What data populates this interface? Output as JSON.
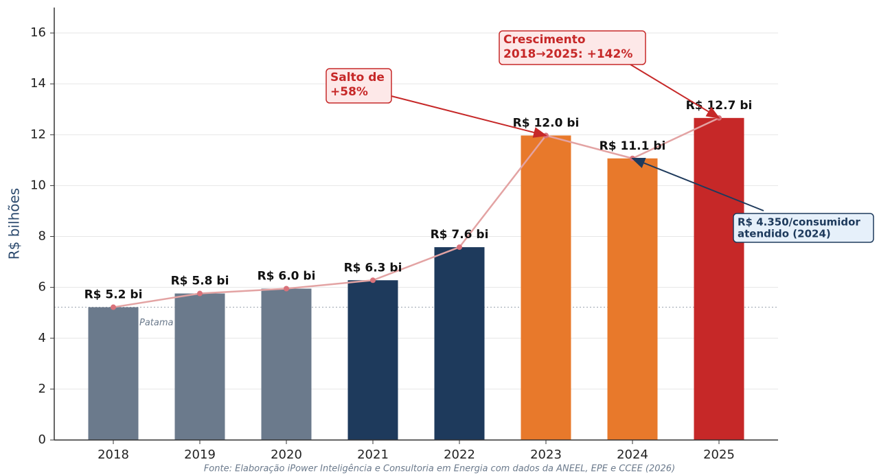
{
  "chart_data": {
    "type": "bar",
    "y_label": "R$ bilhões",
    "footer": "Fonte: Elaboração iPower Inteligência e Consultoria em Energia com dados da ANEEL, EPE e CCEE (2026)",
    "categories": [
      "2018",
      "2019",
      "2020",
      "2021",
      "2022",
      "2023",
      "2024",
      "2025"
    ],
    "values": [
      5.22,
      5.76,
      5.95,
      6.28,
      7.58,
      11.97,
      11.07,
      12.66
    ],
    "value_labels": [
      "R$ 5.2 bi",
      "R$ 5.8 bi",
      "R$ 6.0 bi",
      "R$ 6.3 bi",
      "R$ 7.6 bi",
      "R$ 12.0 bi",
      "R$ 11.1 bi",
      "R$ 12.7 bi"
    ],
    "colors": [
      "#6b7a8c",
      "#6b7a8c",
      "#6b7a8c",
      "#1e3a5c",
      "#1e3a5c",
      "#e8792b",
      "#e8792b",
      "#c62828"
    ],
    "line_color": "#e3a3a3",
    "ylim": [
      0,
      17
    ],
    "yticks": [
      0,
      2,
      4,
      6,
      8,
      10,
      12,
      14,
      16
    ],
    "grid": true,
    "reference_line": {
      "value": 5.22,
      "label": "Patama"
    },
    "annotations": [
      {
        "lines": [
          "Salto de",
          "+58%"
        ],
        "target": 5,
        "color": "#c62828",
        "fill": "#fde8e8"
      },
      {
        "lines": [
          "Crescimento",
          "2018→2025: +142%"
        ],
        "target": 7,
        "color": "#c62828",
        "fill": "#fde8e8"
      },
      {
        "lines": [
          "R$ 4.350/consumidor",
          "atendido (2024)"
        ],
        "target": 6,
        "color": "#1e3a5c",
        "fill": "#e6f0fa"
      }
    ]
  }
}
